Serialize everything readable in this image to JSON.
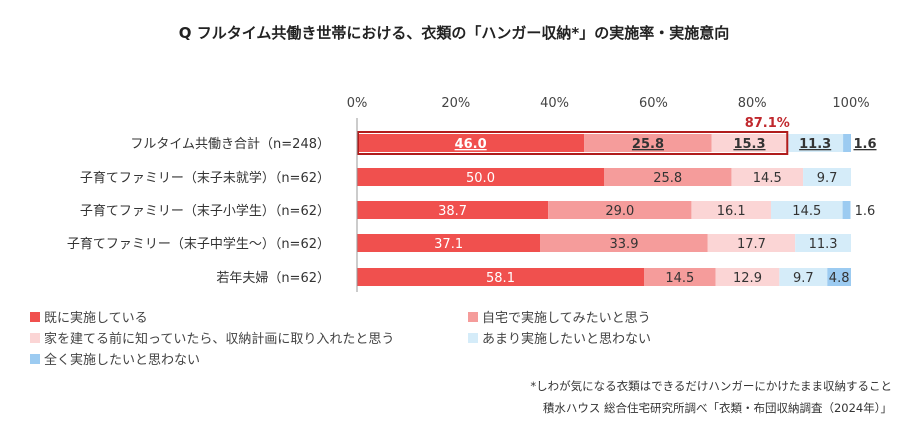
{
  "title": "Q フルタイム共働き世帯における、衣類の「ハンガー収納*」の実施率・実施意向",
  "colors": {
    "s1": "#f0504e",
    "s2": "#f59c9b",
    "s3": "#fbd5d5",
    "s4": "#d5ecf9",
    "s5": "#9ccbf1",
    "highlight_border": "#b01c1c",
    "highlight_text": "#c0282d"
  },
  "chart_data": {
    "type": "bar",
    "orientation": "horizontal-stacked-100",
    "categories": [
      "フルタイム共働き合計（n=248）",
      "子育てファミリー（末子未就学）（n=62）",
      "子育てファミリー（末子小学生）（n=62）",
      "子育てファミリー（末子中学生～）（n=62）",
      "若年夫婦（n=62）"
    ],
    "x_ticks": [
      "0%",
      "20%",
      "40%",
      "60%",
      "80%",
      "100%"
    ],
    "xlim": [
      0,
      100
    ],
    "series": [
      {
        "name": "既に実施している",
        "values": [
          46.0,
          50.0,
          38.7,
          37.1,
          58.1
        ],
        "labels": [
          "46.0",
          "50.0",
          "38.7",
          "37.1",
          "58.1"
        ]
      },
      {
        "name": "自宅で実施してみたいと思う",
        "values": [
          25.8,
          25.8,
          29.0,
          33.9,
          14.5
        ],
        "labels": [
          "25.8",
          "25.8",
          "29.0",
          "33.9",
          "14.5"
        ]
      },
      {
        "name": "家を建てる前に知っていたら、収納計画に取り入れたと思う",
        "values": [
          15.3,
          14.5,
          16.1,
          17.7,
          12.9
        ],
        "labels": [
          "15.3",
          "14.5",
          "16.1",
          "17.7",
          "12.9"
        ]
      },
      {
        "name": "あまり実施したいと思わない",
        "values": [
          11.3,
          9.7,
          14.5,
          11.3,
          9.7
        ],
        "labels": [
          "11.3",
          "9.7",
          "14.5",
          "11.3",
          "9.7"
        ]
      },
      {
        "name": "全く実施したいと思わない",
        "values": [
          1.6,
          0.0,
          1.6,
          0.0,
          4.8
        ],
        "labels": [
          "1.6",
          "",
          "1.6",
          "",
          "4.8"
        ]
      }
    ],
    "highlight": {
      "row": 0,
      "label": "87.1%",
      "value": 87.1
    }
  },
  "legend_items": [
    "既に実施している",
    "自宅で実施してみたいと思う",
    "家を建てる前に知っていたら、収納計画に取り入れたと思う",
    "あまり実施したいと思わない",
    "全く実施したいと思わない"
  ],
  "notes": {
    "line1": "*しわが気になる衣類はできるだけハンガーにかけたまま収納すること",
    "line2": "積水ハウス 総合住宅研究所調べ「衣類・布団収納調査（2024年）」"
  }
}
